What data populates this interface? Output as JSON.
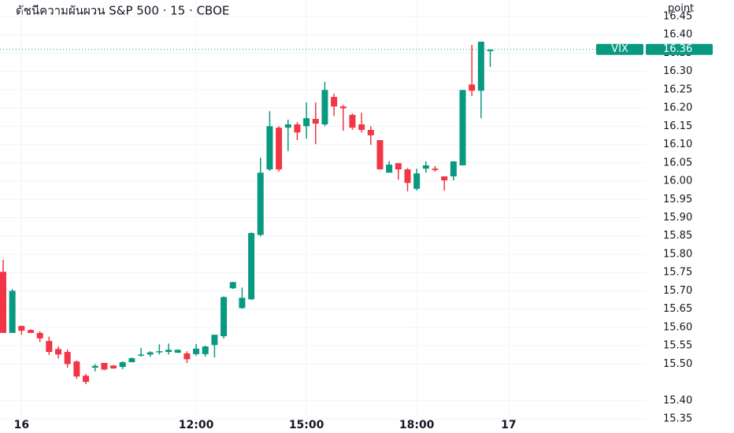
{
  "chart_data": {
    "type": "candlestick",
    "title": "ดัชนีความผันผวน S&P 500 · 15 · CBOE",
    "y_axis_label": "point",
    "up_color": "#089981",
    "down_color": "#f23645",
    "grid": true,
    "ylim": [
      15.333,
      16.495
    ],
    "yticks": [
      {
        "value": 15.35,
        "label": "15.35"
      },
      {
        "value": 15.4,
        "label": "15.40"
      },
      {
        "value": 15.5,
        "label": "15.50"
      },
      {
        "value": 15.55,
        "label": "15.55"
      },
      {
        "value": 15.6,
        "label": "15.60"
      },
      {
        "value": 15.65,
        "label": "15.65"
      },
      {
        "value": 15.7,
        "label": "15.70"
      },
      {
        "value": 15.75,
        "label": "15.75"
      },
      {
        "value": 15.8,
        "label": "15.80"
      },
      {
        "value": 15.85,
        "label": "15.85"
      },
      {
        "value": 15.9,
        "label": "15.90"
      },
      {
        "value": 15.95,
        "label": "15.95"
      },
      {
        "value": 16.0,
        "label": "16.00"
      },
      {
        "value": 16.05,
        "label": "16.05"
      },
      {
        "value": 16.1,
        "label": "16.10"
      },
      {
        "value": 16.15,
        "label": "16.15"
      },
      {
        "value": 16.2,
        "label": "16.20"
      },
      {
        "value": 16.25,
        "label": "16.25"
      },
      {
        "value": 16.3,
        "label": "16.30"
      },
      {
        "value": 16.35,
        "label": "16.35"
      },
      {
        "value": 16.4,
        "label": "16.40"
      },
      {
        "value": 16.45,
        "label": "16.45"
      }
    ],
    "categories": [
      null,
      null,
      "16",
      null,
      null,
      null,
      null,
      null,
      null,
      null,
      null,
      null,
      null,
      null,
      null,
      null,
      null,
      null,
      null,
      null,
      null,
      "12:00",
      null,
      null,
      null,
      null,
      null,
      null,
      null,
      null,
      null,
      null,
      null,
      "15:00",
      null,
      null,
      null,
      null,
      null,
      null,
      null,
      null,
      null,
      null,
      null,
      "18:00",
      null,
      null,
      null,
      null,
      null,
      null,
      null,
      null,
      null,
      "17"
    ],
    "open": [
      15.752,
      15.585,
      15.604,
      15.593,
      15.585,
      15.563,
      15.541,
      15.533,
      15.507,
      15.468,
      15.49,
      15.503,
      15.496,
      15.492,
      15.505,
      15.525,
      15.526,
      15.533,
      15.533,
      15.531,
      15.529,
      15.527,
      15.527,
      15.552,
      15.576,
      15.707,
      15.653,
      15.677,
      15.853,
      16.032,
      16.146,
      16.146,
      16.155,
      16.15,
      16.17,
      16.155,
      16.23,
      16.204,
      16.181,
      16.155,
      16.14,
      16.112,
      16.023,
      16.049,
      16.032,
      15.979,
      16.034,
      16.034,
      16.013,
      16.013,
      16.043,
      16.264,
      16.247,
      16.355,
      null,
      null
    ],
    "high": [
      15.785,
      15.705,
      15.605,
      15.595,
      15.59,
      15.575,
      15.548,
      15.54,
      15.51,
      15.473,
      15.5,
      15.503,
      15.497,
      15.507,
      15.518,
      15.544,
      15.535,
      15.554,
      15.556,
      15.54,
      15.535,
      15.555,
      15.55,
      15.58,
      15.685,
      15.725,
      15.709,
      15.86,
      16.064,
      16.191,
      16.15,
      16.168,
      16.161,
      16.215,
      16.215,
      16.271,
      16.239,
      16.208,
      16.185,
      16.187,
      16.15,
      16.112,
      16.054,
      16.049,
      16.036,
      16.034,
      16.054,
      16.041,
      16.013,
      16.054,
      16.249,
      16.372,
      16.381,
      16.36,
      null,
      null
    ],
    "low": [
      15.585,
      15.585,
      15.58,
      15.585,
      15.56,
      15.525,
      15.515,
      15.49,
      15.46,
      15.445,
      15.48,
      15.483,
      15.487,
      15.486,
      15.505,
      15.52,
      15.52,
      15.526,
      15.526,
      15.53,
      15.503,
      15.522,
      15.52,
      15.518,
      15.57,
      15.705,
      15.651,
      15.675,
      15.849,
      16.028,
      16.026,
      16.082,
      16.112,
      16.116,
      16.101,
      16.15,
      16.178,
      16.138,
      16.14,
      16.133,
      16.099,
      16.032,
      16.023,
      16.004,
      15.972,
      15.974,
      16.023,
      16.026,
      15.974,
      16.002,
      16.043,
      16.232,
      16.172,
      16.312,
      null,
      null
    ],
    "close": [
      15.585,
      15.7,
      15.591,
      15.585,
      15.57,
      15.533,
      15.526,
      15.5,
      15.466,
      15.451,
      15.495,
      15.485,
      15.488,
      15.505,
      15.516,
      15.526,
      15.532,
      15.535,
      15.539,
      15.539,
      15.513,
      15.542,
      15.548,
      15.58,
      15.683,
      15.724,
      15.681,
      15.858,
      16.023,
      16.15,
      16.032,
      16.155,
      16.133,
      16.172,
      16.157,
      16.249,
      16.204,
      16.199,
      16.146,
      16.14,
      16.125,
      16.032,
      16.045,
      16.032,
      15.995,
      16.021,
      16.043,
      16.03,
      16.002,
      16.054,
      16.249,
      16.247,
      16.381,
      16.359,
      null,
      null
    ],
    "last_price": {
      "label": "VIX",
      "value": 16.36
    }
  }
}
